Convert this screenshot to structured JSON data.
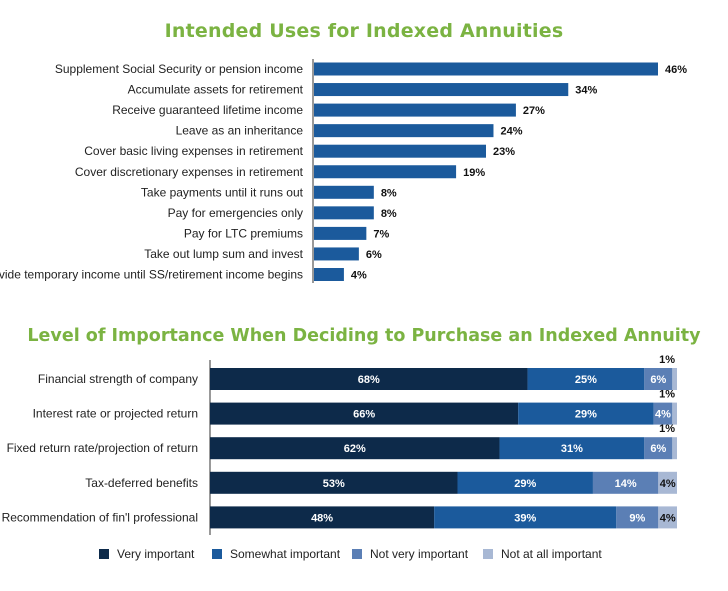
{
  "chart_data": [
    {
      "type": "bar",
      "orientation": "horizontal",
      "title": "Intended Uses for Indexed Annuities",
      "categories": [
        "Supplement Social Security or pension income",
        "Accumulate assets for retirement",
        "Receive guaranteed lifetime income",
        "Leave as an inheritance",
        "Cover basic living expenses in retirement",
        "Cover discretionary expenses in retirement",
        "Take payments until it runs out",
        "Pay for emergencies only",
        "Pay for LTC premiums",
        "Take out lump sum and invest",
        "Provide temporary income until SS/retirement income begins"
      ],
      "values": [
        46,
        34,
        27,
        24,
        23,
        19,
        8,
        8,
        7,
        6,
        4
      ],
      "value_labels": [
        "46%",
        "34%",
        "27%",
        "24%",
        "23%",
        "19%",
        "8%",
        "8%",
        "7%",
        "6%",
        "4%"
      ],
      "xlim": [
        0,
        46
      ],
      "color": "#1b5a9c",
      "grid": false
    },
    {
      "type": "bar",
      "orientation": "horizontal",
      "stacked": true,
      "title": "Level of Importance When Deciding to Purchase an Indexed Annuity",
      "categories": [
        "Financial strength of company",
        "Interest rate or projected return",
        "Fixed return rate/projection of return",
        "Tax-deferred benefits",
        "Recommendation of fin'l professional"
      ],
      "series": [
        {
          "name": "Very important",
          "color": "#0d2a4a",
          "values": [
            68,
            66,
            62,
            53,
            48
          ],
          "labels": [
            "68%",
            "66%",
            "62%",
            "53%",
            "48%"
          ]
        },
        {
          "name": "Somewhat important",
          "color": "#1b5a9c",
          "values": [
            25,
            29,
            31,
            29,
            39
          ],
          "labels": [
            "25%",
            "29%",
            "31%",
            "29%",
            "39%"
          ]
        },
        {
          "name": "Not very important",
          "color": "#5b7fb5",
          "values": [
            6,
            4,
            6,
            14,
            9
          ],
          "labels": [
            "6%",
            "4%",
            "6%",
            "14%",
            "9%"
          ]
        },
        {
          "name": "Not at all important",
          "color": "#a8b8d4",
          "values": [
            1,
            1,
            1,
            4,
            4
          ],
          "labels": [
            "1%",
            "1%",
            "1%",
            "4%",
            "4%"
          ]
        }
      ],
      "xlim": [
        0,
        100
      ],
      "legend": "bottom",
      "grid": false
    }
  ]
}
